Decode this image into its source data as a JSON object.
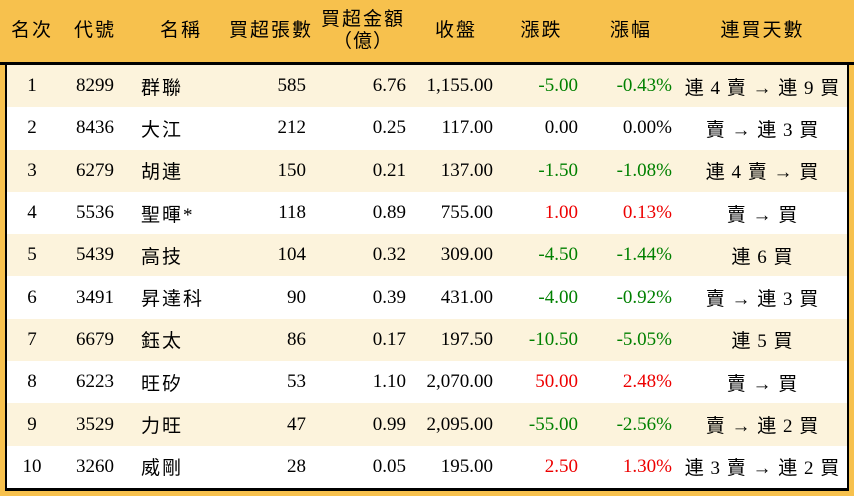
{
  "table": {
    "columns": [
      {
        "key": "rank",
        "label": "名次"
      },
      {
        "key": "code",
        "label": "代號"
      },
      {
        "key": "name",
        "label": "名稱"
      },
      {
        "key": "volume",
        "label": "買超張數"
      },
      {
        "key": "amount",
        "label": "買超金額",
        "label2": "（億）"
      },
      {
        "key": "close",
        "label": "收盤"
      },
      {
        "key": "change",
        "label": "漲跌"
      },
      {
        "key": "pct",
        "label": "漲幅"
      },
      {
        "key": "days",
        "label": "連買天數"
      }
    ],
    "rows": [
      {
        "rank": "1",
        "code": "8299",
        "name": "群聯",
        "volume": "585",
        "amount": "6.76",
        "close": "1,155.00",
        "change": "-5.00",
        "pct": "-0.43%",
        "days": "連 4 賣 → 連 9 買",
        "dir": "down"
      },
      {
        "rank": "2",
        "code": "8436",
        "name": "大江",
        "volume": "212",
        "amount": "0.25",
        "close": "117.00",
        "change": "0.00",
        "pct": "0.00%",
        "days": "賣 → 連 3 買",
        "dir": "flat"
      },
      {
        "rank": "3",
        "code": "6279",
        "name": "胡連",
        "volume": "150",
        "amount": "0.21",
        "close": "137.00",
        "change": "-1.50",
        "pct": "-1.08%",
        "days": "連 4 賣 → 買",
        "dir": "down"
      },
      {
        "rank": "4",
        "code": "5536",
        "name": "聖暉*",
        "volume": "118",
        "amount": "0.89",
        "close": "755.00",
        "change": "1.00",
        "pct": "0.13%",
        "days": "賣 → 買",
        "dir": "up"
      },
      {
        "rank": "5",
        "code": "5439",
        "name": "高技",
        "volume": "104",
        "amount": "0.32",
        "close": "309.00",
        "change": "-4.50",
        "pct": "-1.44%",
        "days": "連 6 買",
        "dir": "down"
      },
      {
        "rank": "6",
        "code": "3491",
        "name": "昇達科",
        "volume": "90",
        "amount": "0.39",
        "close": "431.00",
        "change": "-4.00",
        "pct": "-0.92%",
        "days": "賣 → 連 3 買",
        "dir": "down"
      },
      {
        "rank": "7",
        "code": "6679",
        "name": "鈺太",
        "volume": "86",
        "amount": "0.17",
        "close": "197.50",
        "change": "-10.50",
        "pct": "-5.05%",
        "days": "連 5 買",
        "dir": "down"
      },
      {
        "rank": "8",
        "code": "6223",
        "name": "旺矽",
        "volume": "53",
        "amount": "1.10",
        "close": "2,070.00",
        "change": "50.00",
        "pct": "2.48%",
        "days": "賣 → 買",
        "dir": "up"
      },
      {
        "rank": "9",
        "code": "3529",
        "name": "力旺",
        "volume": "47",
        "amount": "0.99",
        "close": "2,095.00",
        "change": "-55.00",
        "pct": "-2.56%",
        "days": "賣 → 連 2 買",
        "dir": "down"
      },
      {
        "rank": "10",
        "code": "3260",
        "name": "威剛",
        "volume": "28",
        "amount": "0.05",
        "close": "195.00",
        "change": "2.50",
        "pct": "1.30%",
        "days": "連 3 賣 → 連 2 買",
        "dir": "up"
      }
    ]
  },
  "colors": {
    "header_bg": "#F7C14D",
    "row_alt_bg": "#FCF3DC",
    "row_bg": "#FFFFFF",
    "up_red": "#ED0000",
    "down_green": "#008000",
    "neutral": "#000000",
    "border": "#000000"
  }
}
